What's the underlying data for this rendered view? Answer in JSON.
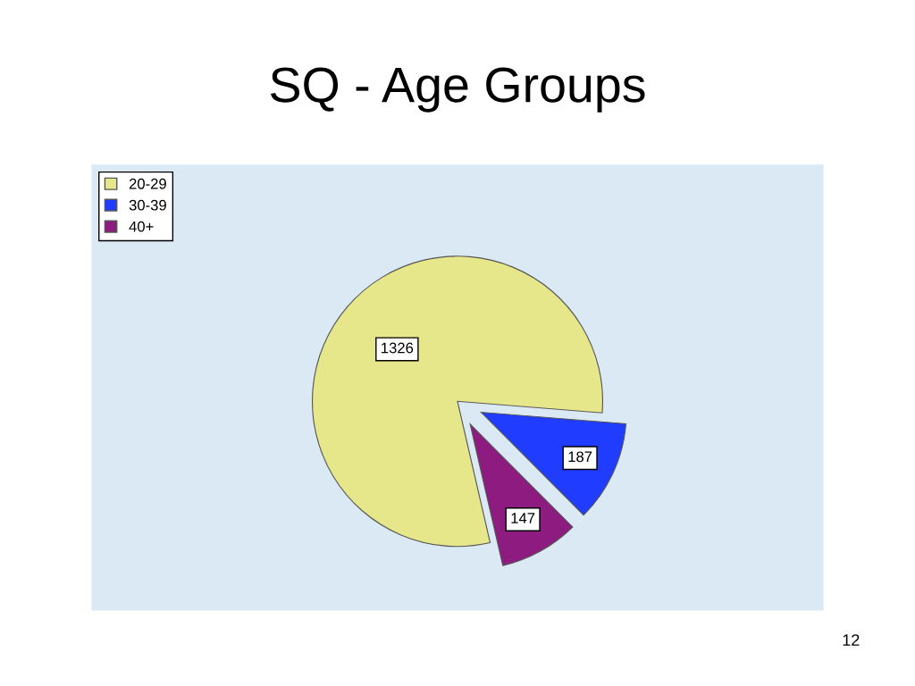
{
  "chart_data": {
    "type": "pie",
    "title": "SQ - Age Groups",
    "categories": [
      "20-29",
      "30-39",
      "40+"
    ],
    "values": [
      1326,
      187,
      147
    ],
    "colors": [
      "#e6e68a",
      "#1f3cff",
      "#8e1c80"
    ],
    "data_labels": true,
    "legend": "top left",
    "annotations": [
      "12"
    ]
  }
}
